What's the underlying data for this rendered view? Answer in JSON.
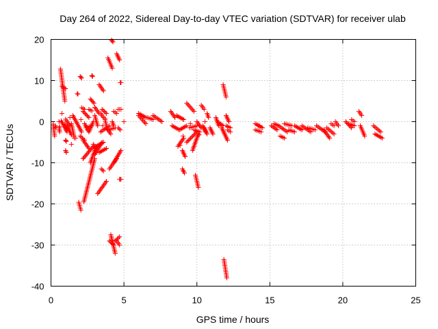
{
  "chart_data": {
    "type": "scatter",
    "title": "Day 264 of 2022, Sidereal Day-to-day VTEC variation (SDTVAR) for receiver ulab",
    "xlabel": "GPS time / hours",
    "ylabel": "SDTVAR / TECUs",
    "xlim": [
      0,
      25
    ],
    "ylim": [
      -40,
      20
    ],
    "xticks": [
      0,
      5,
      10,
      15,
      20,
      25
    ],
    "yticks": [
      -40,
      -30,
      -20,
      -10,
      0,
      10,
      20
    ],
    "grid": true,
    "marker": "plus",
    "color": "#ff0000",
    "segments": [
      [
        0.15,
        -0.6,
        0.25,
        -3.5
      ],
      [
        0.3,
        -1.0,
        0.35,
        -1.5
      ],
      [
        0.55,
        -1.5,
        0.6,
        -2.5
      ],
      [
        0.65,
        12.8,
        0.95,
        5.0
      ],
      [
        0.75,
        8.6,
        1.0,
        8.0
      ],
      [
        0.7,
        0.2,
        1.1,
        -2.5
      ],
      [
        0.95,
        -0.6,
        1.1,
        -2.0
      ],
      [
        1.0,
        -7.0,
        1.05,
        -7.5
      ],
      [
        1.0,
        -4.5,
        1.05,
        -4.8
      ],
      [
        1.0,
        0.6,
        1.3,
        -1.0
      ],
      [
        1.1,
        -1.0,
        1.4,
        -3.2
      ],
      [
        1.4,
        -0.5,
        1.6,
        -4.0
      ],
      [
        1.5,
        1.5,
        2.1,
        -2.5
      ],
      [
        1.8,
        6.8,
        1.85,
        6.7
      ],
      [
        2.0,
        11.0,
        2.1,
        10.6
      ],
      [
        1.9,
        -19.6,
        2.05,
        -21.5
      ],
      [
        2.1,
        3.4,
        2.3,
        3.0
      ],
      [
        2.0,
        -3.5,
        2.3,
        -4.5
      ],
      [
        2.2,
        -4.5,
        2.6,
        -6.5
      ],
      [
        2.25,
        -19.5,
        3.0,
        -9.0
      ],
      [
        2.2,
        -9.0,
        2.9,
        -6.0
      ],
      [
        2.2,
        2.5,
        2.6,
        1.0
      ],
      [
        2.3,
        -0.5,
        2.6,
        -2.5
      ],
      [
        2.4,
        -1.5,
        2.8,
        -1.0
      ],
      [
        2.6,
        3.0,
        2.8,
        2.6
      ],
      [
        2.7,
        5.5,
        2.95,
        4.5
      ],
      [
        2.6,
        -2.5,
        2.9,
        0.0
      ],
      [
        2.7,
        -10.0,
        3.1,
        -6.0
      ],
      [
        2.8,
        11.2,
        2.85,
        11.0
      ],
      [
        2.9,
        -5.5,
        3.1,
        -6.5
      ],
      [
        3.0,
        1.5,
        3.2,
        -1.0
      ],
      [
        3.0,
        3.5,
        3.3,
        2.0
      ],
      [
        3.0,
        -8.0,
        3.5,
        -5.0
      ],
      [
        3.1,
        -6.0,
        3.6,
        -5.0
      ],
      [
        3.2,
        -17.5,
        3.8,
        -14.5
      ],
      [
        3.3,
        -7.5,
        3.8,
        -6.5
      ],
      [
        3.3,
        9.0,
        3.6,
        7.5
      ],
      [
        3.4,
        2.0,
        3.6,
        1.0
      ],
      [
        3.4,
        -2.5,
        4.0,
        -1.0
      ],
      [
        3.45,
        -11.5,
        3.6,
        -12.0
      ],
      [
        3.5,
        3.0,
        3.8,
        2.0
      ],
      [
        3.7,
        0.5,
        3.8,
        -1.0
      ],
      [
        3.8,
        -1.5,
        4.1,
        -3.0
      ],
      [
        3.9,
        -2.0,
        4.4,
        -1.5
      ],
      [
        3.9,
        15.5,
        4.2,
        13.0
      ],
      [
        4.0,
        -29.0,
        4.3,
        -30.0
      ],
      [
        4.0,
        -11.5,
        4.5,
        -9.0
      ],
      [
        4.1,
        -27.5,
        4.4,
        -32.0
      ],
      [
        4.15,
        19.8,
        4.25,
        19.4
      ],
      [
        4.2,
        0.0,
        4.3,
        -1.0
      ],
      [
        4.3,
        2.5,
        4.5,
        2.0
      ],
      [
        4.3,
        -10.0,
        4.8,
        -7.0
      ],
      [
        4.4,
        -29.0,
        4.7,
        -28.0
      ],
      [
        4.5,
        16.5,
        4.7,
        15.0
      ],
      [
        4.5,
        -29.0,
        4.7,
        -30.0
      ],
      [
        4.6,
        -1.5,
        4.75,
        -2.0
      ],
      [
        4.6,
        3.0,
        4.8,
        3.0
      ],
      [
        4.7,
        -14.0,
        4.8,
        -14.0
      ],
      [
        4.75,
        9.5,
        4.8,
        9.5
      ],
      [
        6.0,
        1.5,
        6.5,
        -0.5
      ],
      [
        6.0,
        2.0,
        6.5,
        1.0
      ],
      [
        6.6,
        1.0,
        7.0,
        0.5
      ],
      [
        7.0,
        1.5,
        7.6,
        0.0
      ],
      [
        8.2,
        2.5,
        8.5,
        1.0
      ],
      [
        8.3,
        -1.0,
        8.8,
        -2.0
      ],
      [
        8.6,
        1.5,
        9.1,
        0.5
      ],
      [
        8.7,
        -6.0,
        9.1,
        -4.0
      ],
      [
        8.8,
        -2.0,
        9.3,
        -1.0
      ],
      [
        9.0,
        -11.5,
        9.15,
        -12.5
      ],
      [
        9.0,
        -7.0,
        9.2,
        -8.5
      ],
      [
        9.3,
        4.5,
        9.8,
        2.5
      ],
      [
        9.3,
        -5.0,
        10.0,
        -2.5
      ],
      [
        9.5,
        -1.5,
        10.0,
        -1.0
      ],
      [
        9.7,
        -7.0,
        10.1,
        -3.0
      ],
      [
        9.8,
        -2.0,
        10.2,
        -2.5
      ],
      [
        9.9,
        -13.0,
        10.1,
        -16.0
      ],
      [
        10.0,
        0.0,
        10.3,
        -1.5
      ],
      [
        10.3,
        4.0,
        10.5,
        3.0
      ],
      [
        10.4,
        -1.0,
        10.6,
        -2.5
      ],
      [
        10.5,
        -1.5,
        10.7,
        -3.0
      ],
      [
        10.7,
        2.0,
        10.8,
        1.0
      ],
      [
        10.9,
        -1.5,
        11.1,
        -3.0
      ],
      [
        11.3,
        1.0,
        11.5,
        -1.0
      ],
      [
        11.4,
        0.0,
        11.8,
        -1.0
      ],
      [
        11.7,
        -1.5,
        11.9,
        -3.0
      ],
      [
        11.8,
        9.0,
        12.0,
        6.0
      ],
      [
        11.85,
        -33.5,
        12.05,
        -38.0
      ],
      [
        11.9,
        -3.0,
        12.1,
        -4.5
      ],
      [
        12.0,
        1.5,
        12.2,
        0.0
      ],
      [
        12.0,
        -1.0,
        12.3,
        -1.5
      ],
      [
        12.1,
        -2.0,
        12.3,
        -2.5
      ],
      [
        14.0,
        -0.5,
        14.3,
        -1.0
      ],
      [
        14.0,
        -2.0,
        14.4,
        -2.5
      ],
      [
        14.2,
        -1.0,
        14.5,
        -1.5
      ],
      [
        15.1,
        -1.0,
        15.5,
        -2.0
      ],
      [
        15.3,
        -0.5,
        15.6,
        -1.0
      ],
      [
        15.6,
        -1.0,
        16.2,
        -2.5
      ],
      [
        15.7,
        -3.5,
        16.0,
        -4.0
      ],
      [
        16.0,
        -0.5,
        16.5,
        -1.0
      ],
      [
        16.3,
        -2.0,
        16.7,
        -2.5
      ],
      [
        16.7,
        -1.0,
        17.2,
        -2.0
      ],
      [
        17.2,
        -1.0,
        17.8,
        -2.5
      ],
      [
        17.6,
        -1.5,
        18.1,
        -2.0
      ],
      [
        18.2,
        -1.0,
        18.8,
        -2.5
      ],
      [
        18.7,
        -2.0,
        19.1,
        -4.0
      ],
      [
        18.9,
        -1.5,
        19.4,
        -3.0
      ],
      [
        19.2,
        -0.5,
        19.4,
        -1.0
      ],
      [
        19.5,
        0.0,
        19.7,
        -1.0
      ],
      [
        20.2,
        0.0,
        20.6,
        -1.5
      ],
      [
        20.4,
        -0.5,
        20.8,
        -1.0
      ],
      [
        20.6,
        0.5,
        20.8,
        0.0
      ],
      [
        21.1,
        2.5,
        21.3,
        1.5
      ],
      [
        21.2,
        -1.0,
        21.5,
        -3.5
      ],
      [
        22.1,
        -1.0,
        22.6,
        -2.5
      ],
      [
        22.2,
        -3.0,
        22.7,
        -4.0
      ]
    ],
    "points": [
      [
        0.55,
        0.0
      ],
      [
        0.6,
        -1.2
      ],
      [
        0.75,
        2.0
      ],
      [
        1.3,
        1.0
      ],
      [
        1.4,
        -5.5
      ],
      [
        1.7,
        -4.0
      ],
      [
        2.05,
        0.5
      ],
      [
        3.55,
        -1.0
      ],
      [
        3.7,
        0.8
      ],
      [
        5.0,
        0.0
      ],
      [
        8.85,
        -5.8
      ],
      [
        9.05,
        -3.5
      ],
      [
        9.55,
        -0.5
      ],
      [
        10.15,
        -3.2
      ],
      [
        10.55,
        0.0
      ],
      [
        11.6,
        -0.7
      ]
    ]
  }
}
